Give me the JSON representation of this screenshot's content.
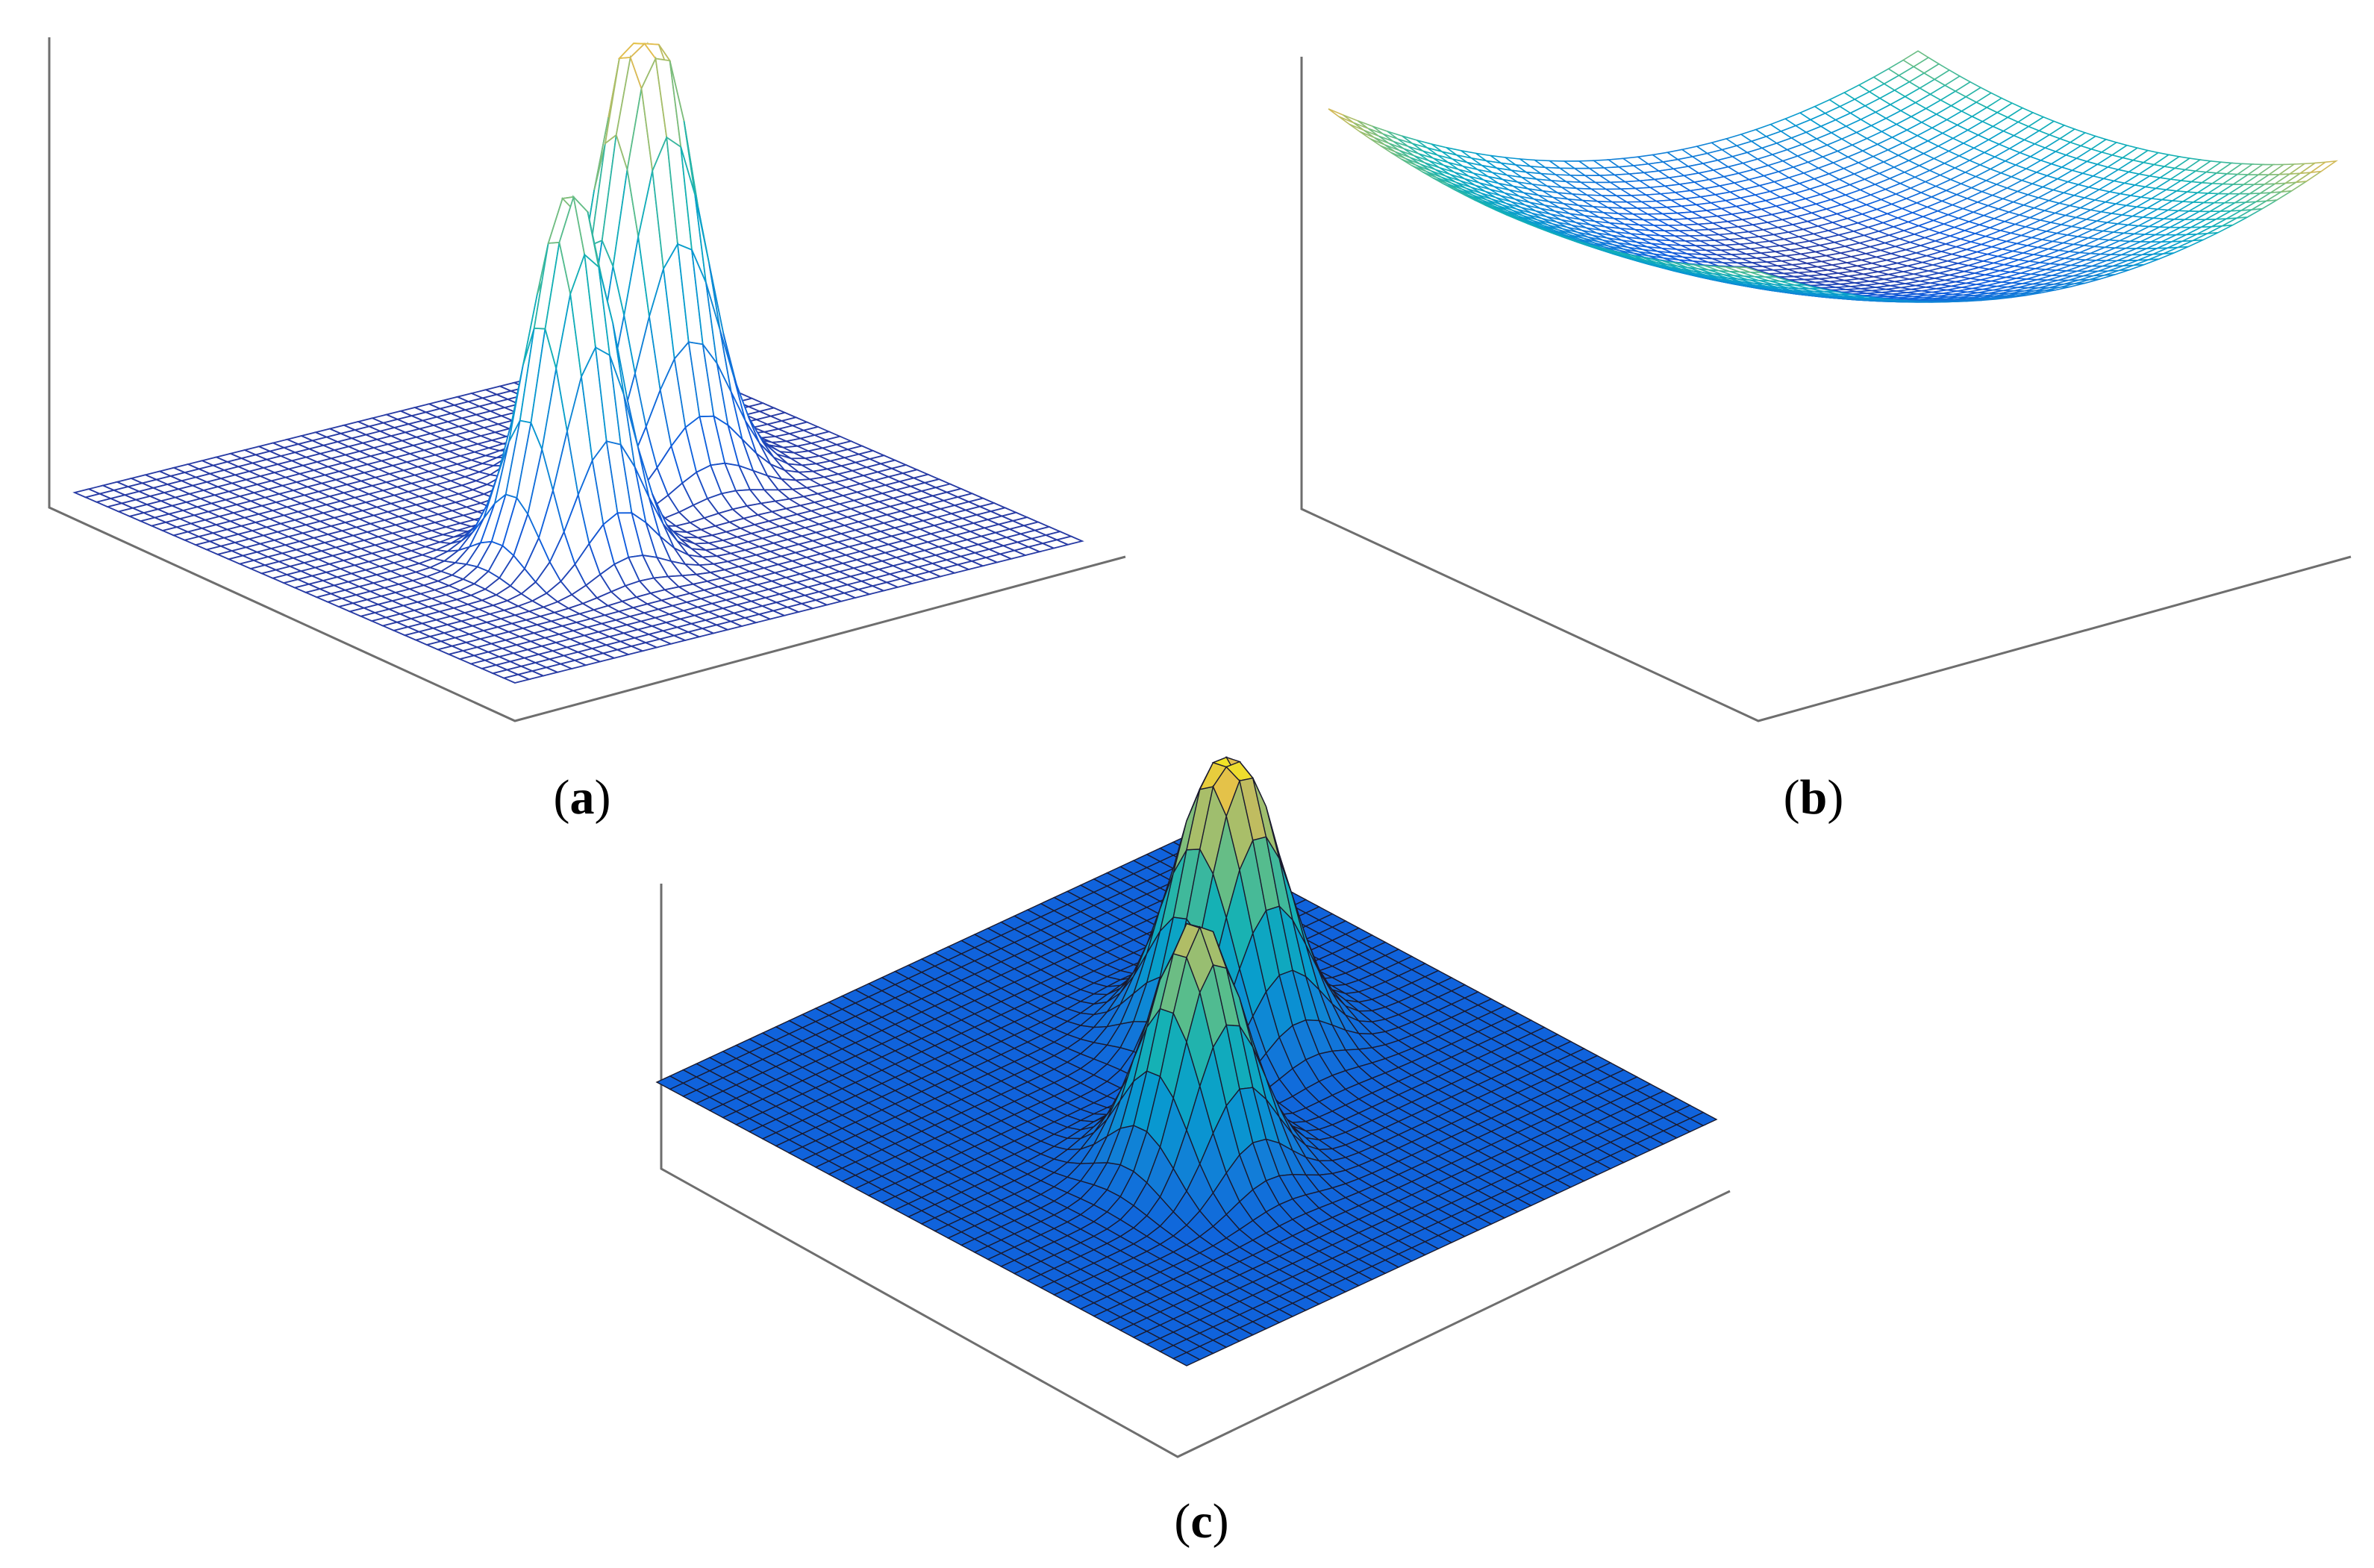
{
  "figure": {
    "panels": [
      {
        "id": "a",
        "label": "a",
        "style": "wireframe"
      },
      {
        "id": "b",
        "label": "b",
        "style": "wireframe-dense"
      },
      {
        "id": "c",
        "label": "c",
        "style": "surface"
      }
    ]
  },
  "chart_data": [
    {
      "type": "surface",
      "render": "mesh",
      "title": "",
      "xlabel": "",
      "ylabel": "",
      "zlabel": "",
      "grid": false,
      "colormap": "parula",
      "grid_size": 40,
      "peaks": [
        {
          "cx": 0.68,
          "cy": 0.58,
          "amp": 1.0,
          "sigma": 0.07,
          "plateau": 0.88
        },
        {
          "cx": 0.38,
          "cy": 0.36,
          "amp": 0.78,
          "sigma": 0.06,
          "plateau": 0.78
        }
      ],
      "jitter_peak": 0
    },
    {
      "type": "surface",
      "render": "mesh",
      "title": "",
      "xlabel": "",
      "ylabel": "",
      "zlabel": "",
      "grid": false,
      "colormap": "parula",
      "grid_size": 40,
      "shape": "saddle-bowl"
    },
    {
      "type": "surface",
      "render": "surf",
      "title": "",
      "xlabel": "",
      "ylabel": "",
      "zlabel": "",
      "grid": false,
      "colormap": "parula",
      "grid_size": 40,
      "peaks": [
        {
          "cx": 0.66,
          "cy": 0.58,
          "amp": 0.95,
          "sigma": 0.07,
          "plateau": 0.86
        },
        {
          "cx": 0.38,
          "cy": 0.36,
          "amp": 0.8,
          "sigma": 0.065,
          "plateau": 0.8
        }
      ],
      "jitter_peak": 0
    }
  ]
}
